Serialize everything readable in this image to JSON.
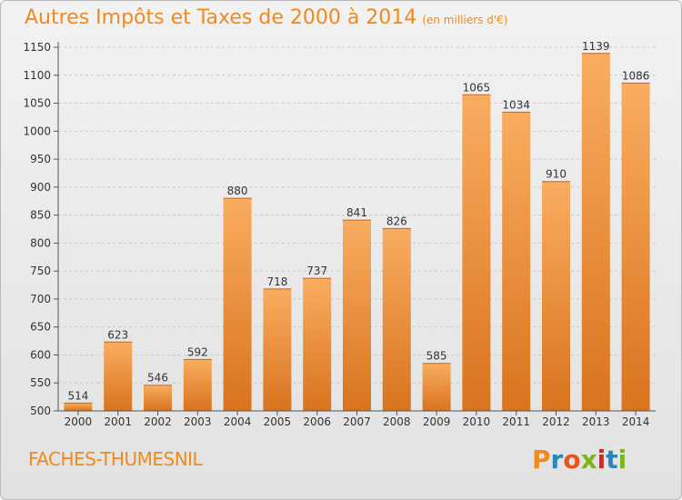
{
  "header": {
    "title": "Autres Impôts et Taxes de 2000 à 2014",
    "subtitle": "(en milliers d'€)"
  },
  "footer": {
    "place": "FACHES-THUMESNIL",
    "logo": "Proxiti"
  },
  "colors": {
    "accent": "#f08a1c",
    "bar_top": "#f9ad60",
    "bar_bottom": "#d9731e",
    "logo_letters": [
      "#f08a1c",
      "#2e86c1",
      "#e8541c",
      "#7ab51d",
      "#e2231a",
      "#2e86c1",
      "#7ab51d"
    ]
  },
  "chart_data": {
    "type": "bar",
    "title": "Autres Impôts et Taxes de 2000 à 2014",
    "subtitle": "(en milliers d'€)",
    "xlabel": "",
    "ylabel": "",
    "categories": [
      "2000",
      "2001",
      "2002",
      "2003",
      "2004",
      "2005",
      "2006",
      "2007",
      "2008",
      "2009",
      "2010",
      "2011",
      "2012",
      "2013",
      "2014"
    ],
    "values": [
      514,
      623,
      546,
      592,
      880,
      718,
      737,
      841,
      826,
      585,
      1065,
      1034,
      910,
      1139,
      1086
    ],
    "ylim": [
      500,
      1150
    ],
    "yticks": [
      500,
      550,
      600,
      650,
      700,
      750,
      800,
      850,
      900,
      950,
      1000,
      1050,
      1100,
      1150
    ],
    "grid": true,
    "legend": "none"
  }
}
